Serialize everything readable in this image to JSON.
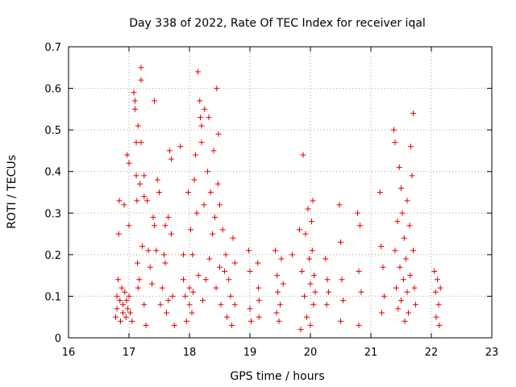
{
  "chart_data": {
    "type": "scatter",
    "title": "Day 338 of 2022, Rate Of TEC Index for receiver iqal",
    "xlabel": "GPS time / hours",
    "ylabel": "ROTI / TECUs",
    "xlim": [
      16,
      23
    ],
    "ylim": [
      0,
      0.7
    ],
    "xticks": [
      "16",
      "17",
      "18",
      "19",
      "20",
      "21",
      "22",
      "23"
    ],
    "yticks": [
      "0",
      "0.1",
      "0.2",
      "0.3",
      "0.4",
      "0.5",
      "0.6",
      "0.7"
    ],
    "grid": true,
    "marker": "plus",
    "color": "#e00000",
    "series": [
      {
        "name": "ROTI",
        "points": [
          [
            16.78,
            0.05
          ],
          [
            16.8,
            0.1
          ],
          [
            16.8,
            0.07
          ],
          [
            16.82,
            0.14
          ],
          [
            16.83,
            0.25
          ],
          [
            16.84,
            0.33
          ],
          [
            16.85,
            0.09
          ],
          [
            16.86,
            0.04
          ],
          [
            16.88,
            0.12
          ],
          [
            16.9,
            0.06
          ],
          [
            16.9,
            0.08
          ],
          [
            16.92,
            0.32
          ],
          [
            16.93,
            0.11
          ],
          [
            16.95,
            0.05
          ],
          [
            16.96,
            0.09
          ],
          [
            16.97,
            0.44
          ],
          [
            16.98,
            0.07
          ],
          [
            17.0,
            0.42
          ],
          [
            17.0,
            0.27
          ],
          [
            17.0,
            0.1
          ],
          [
            17.02,
            0.06
          ],
          [
            17.05,
            0.04
          ],
          [
            17.08,
            0.59
          ],
          [
            17.1,
            0.57
          ],
          [
            17.1,
            0.55
          ],
          [
            17.12,
            0.47
          ],
          [
            17.12,
            0.39
          ],
          [
            17.13,
            0.33
          ],
          [
            17.14,
            0.18
          ],
          [
            17.15,
            0.51
          ],
          [
            17.15,
            0.12
          ],
          [
            17.17,
            0.14
          ],
          [
            17.18,
            0.37
          ],
          [
            17.2,
            0.65
          ],
          [
            17.2,
            0.62
          ],
          [
            17.2,
            0.47
          ],
          [
            17.22,
            0.22
          ],
          [
            17.25,
            0.39
          ],
          [
            17.25,
            0.34
          ],
          [
            17.25,
            0.08
          ],
          [
            17.28,
            0.03
          ],
          [
            17.3,
            0.33
          ],
          [
            17.32,
            0.21
          ],
          [
            17.35,
            0.17
          ],
          [
            17.38,
            0.13
          ],
          [
            17.4,
            0.29
          ],
          [
            17.42,
            0.57
          ],
          [
            17.42,
            0.27
          ],
          [
            17.45,
            0.21
          ],
          [
            17.47,
            0.38
          ],
          [
            17.5,
            0.35
          ],
          [
            17.52,
            0.08
          ],
          [
            17.55,
            0.12
          ],
          [
            17.58,
            0.2
          ],
          [
            17.6,
            0.27
          ],
          [
            17.6,
            0.18
          ],
          [
            17.62,
            0.06
          ],
          [
            17.65,
            0.29
          ],
          [
            17.65,
            0.09
          ],
          [
            17.67,
            0.45
          ],
          [
            17.7,
            0.43
          ],
          [
            17.7,
            0.25
          ],
          [
            17.72,
            0.1
          ],
          [
            17.75,
            0.03
          ],
          [
            17.85,
            0.46
          ],
          [
            17.9,
            0.2
          ],
          [
            17.9,
            0.14
          ],
          [
            17.93,
            0.1
          ],
          [
            17.95,
            0.04
          ],
          [
            17.98,
            0.35
          ],
          [
            18.0,
            0.12
          ],
          [
            18.0,
            0.08
          ],
          [
            18.02,
            0.26
          ],
          [
            18.04,
            0.06
          ],
          [
            18.05,
            0.2
          ],
          [
            18.06,
            0.11
          ],
          [
            18.08,
            0.38
          ],
          [
            18.1,
            0.44
          ],
          [
            18.12,
            0.3
          ],
          [
            18.14,
            0.64
          ],
          [
            18.15,
            0.15
          ],
          [
            18.17,
            0.57
          ],
          [
            18.18,
            0.53
          ],
          [
            18.2,
            0.51
          ],
          [
            18.2,
            0.47
          ],
          [
            18.22,
            0.09
          ],
          [
            18.24,
            0.32
          ],
          [
            18.25,
            0.55
          ],
          [
            18.27,
            0.14
          ],
          [
            18.3,
            0.4
          ],
          [
            18.32,
            0.53
          ],
          [
            18.33,
            0.19
          ],
          [
            18.35,
            0.35
          ],
          [
            18.38,
            0.25
          ],
          [
            18.4,
            0.45
          ],
          [
            18.42,
            0.29
          ],
          [
            18.44,
            0.12
          ],
          [
            18.45,
            0.6
          ],
          [
            18.47,
            0.37
          ],
          [
            18.48,
            0.49
          ],
          [
            18.5,
            0.32
          ],
          [
            18.5,
            0.17
          ],
          [
            18.52,
            0.08
          ],
          [
            18.55,
            0.26
          ],
          [
            18.58,
            0.16
          ],
          [
            18.6,
            0.2
          ],
          [
            18.62,
            0.05
          ],
          [
            18.65,
            0.14
          ],
          [
            18.68,
            0.1
          ],
          [
            18.7,
            0.03
          ],
          [
            18.72,
            0.24
          ],
          [
            18.75,
            0.18
          ],
          [
            18.75,
            0.08
          ],
          [
            18.98,
            0.21
          ],
          [
            19.0,
            0.16
          ],
          [
            19.0,
            0.07
          ],
          [
            19.02,
            0.04
          ],
          [
            19.13,
            0.18
          ],
          [
            19.14,
            0.12
          ],
          [
            19.15,
            0.05
          ],
          [
            19.15,
            0.09
          ],
          [
            19.42,
            0.21
          ],
          [
            19.44,
            0.06
          ],
          [
            19.45,
            0.15
          ],
          [
            19.46,
            0.11
          ],
          [
            19.48,
            0.04
          ],
          [
            19.5,
            0.08
          ],
          [
            19.52,
            0.19
          ],
          [
            19.55,
            0.13
          ],
          [
            19.7,
            0.2
          ],
          [
            19.82,
            0.26
          ],
          [
            19.84,
            0.02
          ],
          [
            19.86,
            0.16
          ],
          [
            19.88,
            0.44
          ],
          [
            19.9,
            0.1
          ],
          [
            19.92,
            0.25
          ],
          [
            19.94,
            0.05
          ],
          [
            19.96,
            0.31
          ],
          [
            19.98,
            0.19
          ],
          [
            20.0,
            0.13
          ],
          [
            20.0,
            0.03
          ],
          [
            20.02,
            0.28
          ],
          [
            20.03,
            0.21
          ],
          [
            20.04,
            0.33
          ],
          [
            20.05,
            0.08
          ],
          [
            20.06,
            0.15
          ],
          [
            20.08,
            0.11
          ],
          [
            20.25,
            0.19
          ],
          [
            20.27,
            0.08
          ],
          [
            20.28,
            0.14
          ],
          [
            20.3,
            0.11
          ],
          [
            20.48,
            0.32
          ],
          [
            20.5,
            0.23
          ],
          [
            20.5,
            0.04
          ],
          [
            20.52,
            0.14
          ],
          [
            20.54,
            0.09
          ],
          [
            20.78,
            0.3
          ],
          [
            20.8,
            0.16
          ],
          [
            20.8,
            0.03
          ],
          [
            20.82,
            0.27
          ],
          [
            20.84,
            0.11
          ],
          [
            21.15,
            0.35
          ],
          [
            21.17,
            0.22
          ],
          [
            21.18,
            0.06
          ],
          [
            21.2,
            0.17
          ],
          [
            21.22,
            0.1
          ],
          [
            21.38,
            0.5
          ],
          [
            21.4,
            0.47
          ],
          [
            21.4,
            0.21
          ],
          [
            21.42,
            0.12
          ],
          [
            21.44,
            0.28
          ],
          [
            21.45,
            0.07
          ],
          [
            21.47,
            0.41
          ],
          [
            21.48,
            0.17
          ],
          [
            21.5,
            0.36
          ],
          [
            21.5,
            0.09
          ],
          [
            21.52,
            0.3
          ],
          [
            21.54,
            0.14
          ],
          [
            21.55,
            0.24
          ],
          [
            21.56,
            0.04
          ],
          [
            21.58,
            0.19
          ],
          [
            21.6,
            0.33
          ],
          [
            21.6,
            0.11
          ],
          [
            21.62,
            0.06
          ],
          [
            21.64,
            0.27
          ],
          [
            21.65,
            0.15
          ],
          [
            21.66,
            0.46
          ],
          [
            21.68,
            0.39
          ],
          [
            21.7,
            0.54
          ],
          [
            21.7,
            0.21
          ],
          [
            21.72,
            0.12
          ],
          [
            21.74,
            0.08
          ],
          [
            22.05,
            0.16
          ],
          [
            22.07,
            0.11
          ],
          [
            22.08,
            0.05
          ],
          [
            22.1,
            0.14
          ],
          [
            22.12,
            0.08
          ],
          [
            22.13,
            0.03
          ],
          [
            22.15,
            0.12
          ]
        ]
      }
    ]
  }
}
